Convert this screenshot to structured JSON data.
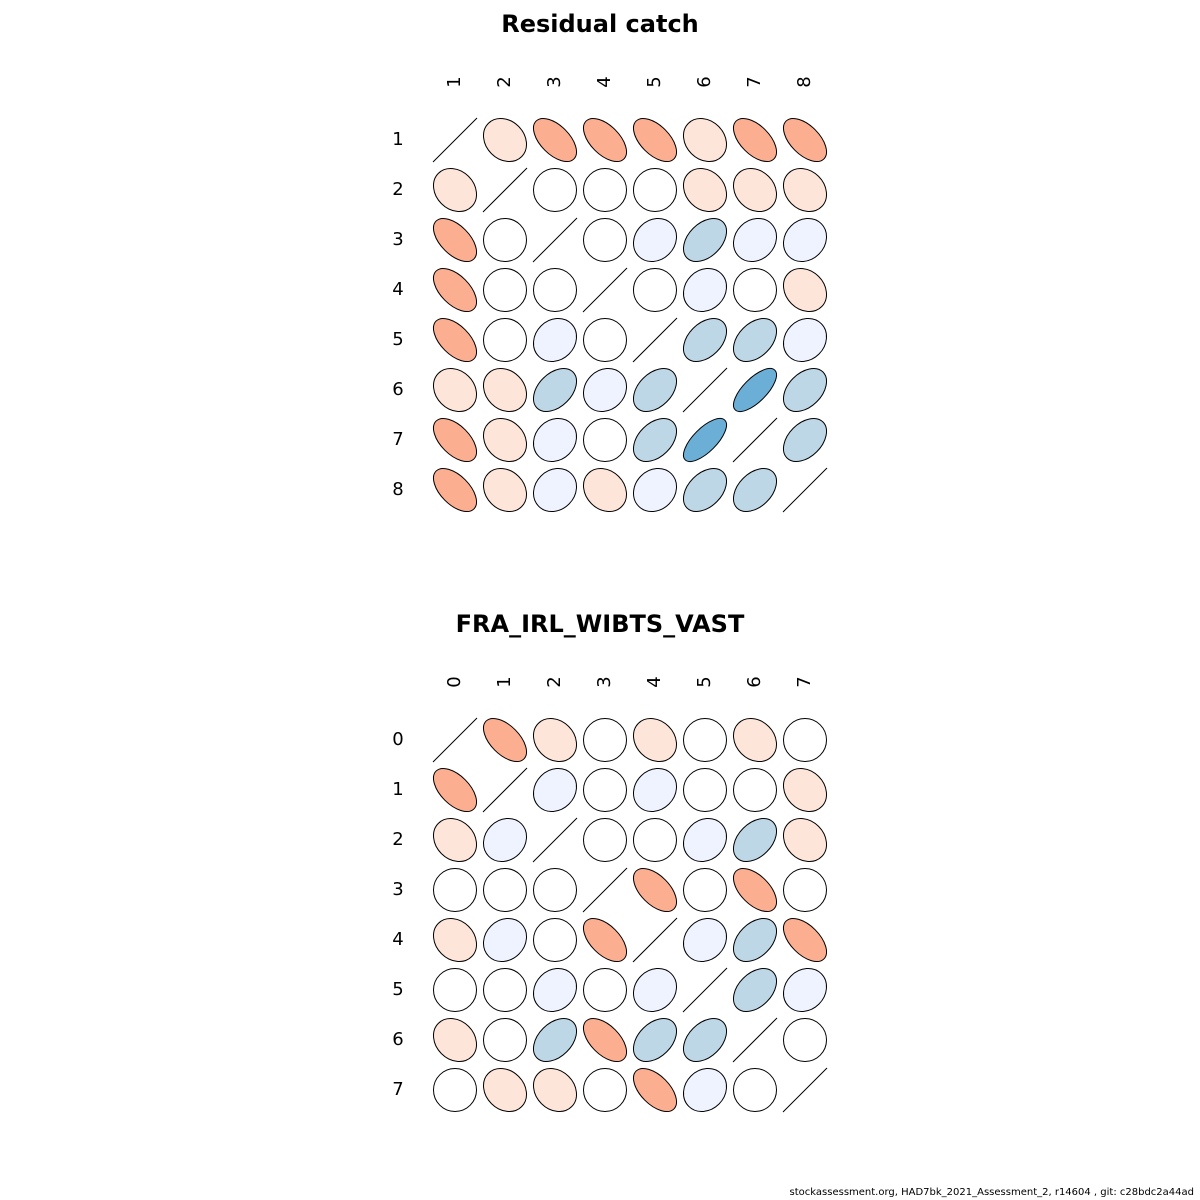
{
  "chart_data": [
    {
      "type": "heatmap",
      "subtype": "correlation-ellipse-matrix",
      "title": "Residual catch",
      "labels": [
        "1",
        "2",
        "3",
        "4",
        "5",
        "6",
        "7",
        "8"
      ],
      "matrix": [
        [
          1.0,
          0.2,
          0.55,
          0.55,
          0.55,
          0.2,
          0.55,
          0.55
        ],
        [
          0.2,
          1.0,
          0.0,
          0.0,
          0.0,
          0.2,
          0.2,
          0.2
        ],
        [
          0.55,
          0.0,
          1.0,
          0.0,
          -0.15,
          -0.4,
          -0.15,
          -0.15
        ],
        [
          0.55,
          0.0,
          0.0,
          1.0,
          0.0,
          -0.15,
          0.0,
          0.2
        ],
        [
          0.55,
          0.0,
          -0.15,
          0.0,
          1.0,
          -0.4,
          -0.4,
          -0.15
        ],
        [
          0.2,
          0.2,
          -0.4,
          -0.15,
          -0.4,
          1.0,
          -0.7,
          -0.4
        ],
        [
          0.55,
          0.2,
          -0.15,
          0.0,
          -0.4,
          -0.7,
          1.0,
          -0.4
        ],
        [
          0.55,
          0.2,
          -0.15,
          0.2,
          -0.15,
          -0.4,
          -0.4,
          1.0
        ]
      ]
    },
    {
      "type": "heatmap",
      "subtype": "correlation-ellipse-matrix",
      "title": "FRA_IRL_WIBTS_VAST",
      "labels": [
        "0",
        "1",
        "2",
        "3",
        "4",
        "5",
        "6",
        "7"
      ],
      "matrix": [
        [
          1.0,
          0.55,
          0.2,
          0.0,
          0.2,
          0.0,
          0.2,
          0.0
        ],
        [
          0.55,
          1.0,
          -0.15,
          0.0,
          -0.15,
          0.0,
          0.0,
          0.2
        ],
        [
          0.2,
          -0.15,
          1.0,
          0.0,
          0.0,
          -0.15,
          -0.4,
          0.2
        ],
        [
          0.0,
          0.0,
          0.0,
          1.0,
          0.55,
          0.0,
          0.55,
          0.0
        ],
        [
          0.2,
          -0.15,
          0.0,
          0.55,
          1.0,
          -0.15,
          -0.4,
          0.55
        ],
        [
          0.0,
          0.0,
          -0.15,
          0.0,
          -0.15,
          1.0,
          -0.4,
          -0.15
        ],
        [
          0.2,
          0.0,
          -0.4,
          0.55,
          -0.4,
          -0.4,
          1.0,
          0.0
        ],
        [
          0.0,
          0.2,
          0.2,
          0.0,
          0.55,
          -0.15,
          0.0,
          1.0
        ]
      ]
    }
  ],
  "footer": "stockassessment.org, HAD7bk_2021_Assessment_2, r14604 , git: c28bdc2a44ad"
}
